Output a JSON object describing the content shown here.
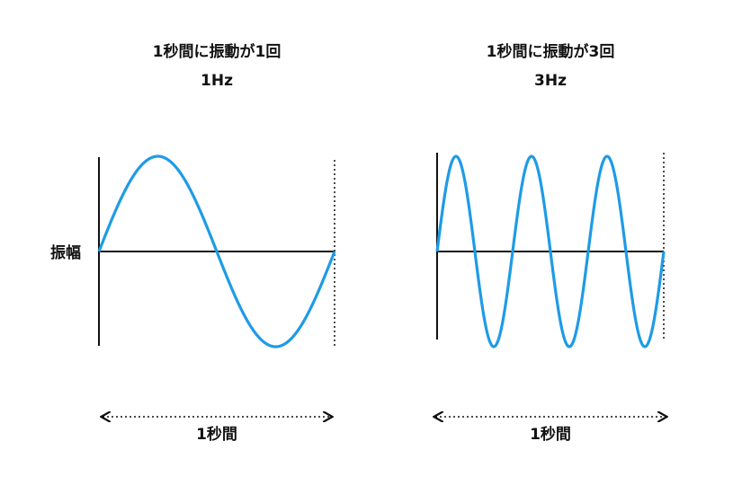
{
  "amplitude_label": "振幅",
  "panels": [
    {
      "title": "1秒間に振動が1回",
      "frequency_label": "1Hz",
      "duration_label": "1秒間"
    },
    {
      "title": "1秒間に振動が3回",
      "frequency_label": "3Hz",
      "duration_label": "1秒間"
    }
  ]
}
